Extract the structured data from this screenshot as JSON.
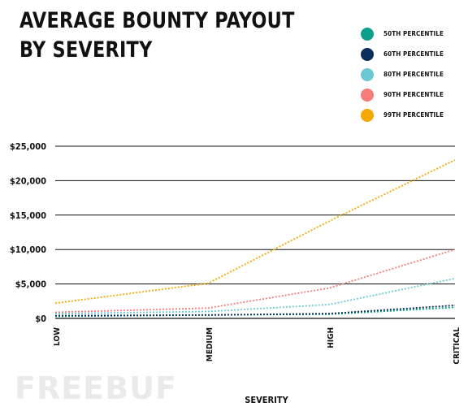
{
  "title_lines": [
    "AVERAGE BOUNTY PAYOUT",
    "BY SEVERITY"
  ],
  "watermark": "FREEBUF",
  "chart_data": {
    "type": "line",
    "title": "AVERAGE BOUNTY PAYOUT BY SEVERITY",
    "categories": [
      "LOW",
      "MEDIUM",
      "HIGH",
      "CRITICAL"
    ],
    "xlabel": "SEVERITY",
    "ylabel": "",
    "ylim": [
      0,
      25000
    ],
    "yticks": [
      {
        "value": 0,
        "label": "$0"
      },
      {
        "value": 5000,
        "label": "$5,000"
      },
      {
        "value": 10000,
        "label": "$10,000"
      },
      {
        "value": 15000,
        "label": "$15,000"
      },
      {
        "value": 20000,
        "label": "$20,000"
      },
      {
        "value": 25000,
        "label": "$25,000"
      }
    ],
    "grid": "horizontal",
    "legend_position": "top-right",
    "series": [
      {
        "name": "50TH PERCENTILE",
        "color": "#0e9f8a",
        "values": [
          300,
          500,
          600,
          1600
        ]
      },
      {
        "name": "60TH PERCENTILE",
        "color": "#0b2d5c",
        "values": [
          400,
          500,
          700,
          1900
        ]
      },
      {
        "name": "80TH PERCENTILE",
        "color": "#6cc9d4",
        "values": [
          700,
          1000,
          2000,
          5800
        ]
      },
      {
        "name": "90TH PERCENTILE",
        "color": "#f47d7a",
        "values": [
          900,
          1500,
          4400,
          10000
        ]
      },
      {
        "name": "99TH PERCENTILE",
        "color": "#f5a800",
        "values": [
          2200,
          5100,
          14100,
          23000
        ]
      }
    ]
  }
}
